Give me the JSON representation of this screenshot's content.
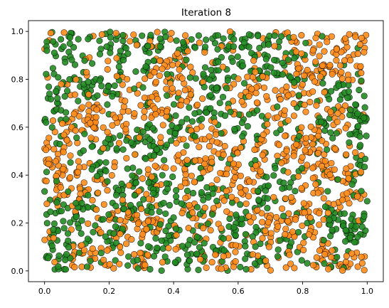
{
  "chart_data": {
    "type": "scatter",
    "title": "Iteration 8",
    "xlabel": "",
    "ylabel": "",
    "xlim": [
      -0.05,
      1.05
    ],
    "ylim": [
      -0.045,
      1.045
    ],
    "xticks": [
      0.0,
      0.2,
      0.4,
      0.6,
      0.8,
      1.0
    ],
    "yticks": [
      0.0,
      0.2,
      0.4,
      0.6,
      0.8,
      1.0
    ],
    "xtick_labels": [
      "0.0",
      "0.2",
      "0.4",
      "0.6",
      "0.8",
      "1.0"
    ],
    "ytick_labels": [
      "0.0",
      "0.2",
      "0.4",
      "0.6",
      "0.8",
      "1.0"
    ],
    "grid": false,
    "legend": "none",
    "series": [
      {
        "color": "#ff8c1a",
        "approx_point_count": 1000,
        "distribution": "uniform over [0,1] x [0,1], interleaved with the green points in small clusters"
      },
      {
        "color": "#228b22",
        "approx_point_count": 1000,
        "distribution": "uniform over [0,1] x [0,1], interleaved with the orange points in small clusters"
      }
    ],
    "marker_edge_color": "#000000"
  }
}
